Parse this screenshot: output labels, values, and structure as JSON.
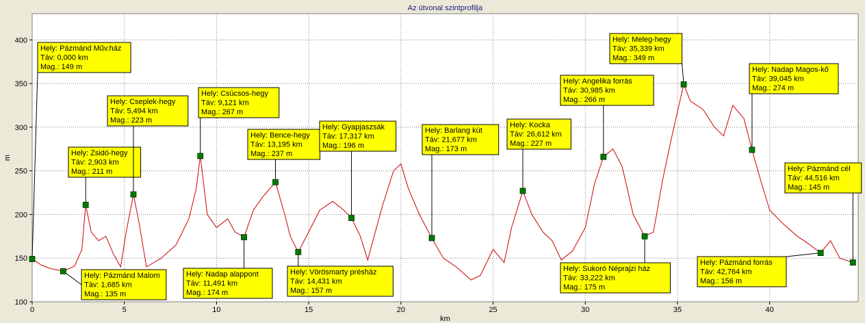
{
  "chart_data": {
    "type": "line",
    "title": "Az útvonal szintprofilja",
    "xlabel": "km",
    "ylabel": "m",
    "xlim": [
      0,
      44.8
    ],
    "ylim": [
      100,
      430
    ],
    "xticks": [
      "0",
      "5",
      "10",
      "15",
      "20",
      "25",
      "30",
      "35",
      "40"
    ],
    "yticks": [
      "100",
      "150",
      "200",
      "250",
      "300",
      "350",
      "400"
    ],
    "grid": true,
    "colors": {
      "line": "#cc0000",
      "marker": "#007a00",
      "label_bg": "#ffff00",
      "plot_bg": "#ffffff",
      "frame_bg": "#ece9d8",
      "title": "#1a1a80"
    },
    "series": [
      {
        "x": [
          0,
          0.5,
          1.0,
          1.685,
          2.3,
          2.7,
          2.903,
          3.2,
          3.6,
          4.0,
          4.4,
          4.8,
          5.1,
          5.494,
          5.8,
          6.2,
          7.0,
          7.8,
          8.5,
          8.9,
          9.121,
          9.5,
          10.0,
          10.6,
          11.0,
          11.491,
          12.0,
          12.5,
          13.195,
          13.7,
          14.0,
          14.431,
          15.0,
          15.6,
          16.3,
          16.9,
          17.317,
          17.8,
          18.2,
          19.0,
          19.6,
          20.0,
          20.4,
          21.0,
          21.677,
          22.3,
          23.0,
          23.8,
          24.3,
          25.0,
          25.6,
          26.0,
          26.612,
          27.1,
          27.7,
          28.2,
          28.7,
          29.3,
          30.0,
          30.5,
          30.985,
          31.5,
          32.0,
          32.6,
          33.222,
          33.7,
          34.2,
          34.7,
          35.339,
          35.7,
          36.4,
          37.0,
          37.5,
          38.0,
          38.6,
          39.045,
          39.5,
          40.0,
          40.7,
          41.5,
          42.0,
          42.764,
          43.3,
          43.8,
          44.516
        ],
        "y": [
          149,
          142,
          138,
          135,
          141,
          160,
          211,
          180,
          170,
          175,
          155,
          140,
          180,
          223,
          190,
          140,
          150,
          165,
          195,
          230,
          267,
          200,
          185,
          195,
          180,
          174,
          205,
          220,
          237,
          200,
          175,
          157,
          180,
          205,
          215,
          205,
          196,
          175,
          148,
          210,
          250,
          258,
          230,
          200,
          173,
          150,
          140,
          125,
          130,
          160,
          145,
          185,
          227,
          200,
          180,
          170,
          148,
          158,
          185,
          235,
          266,
          275,
          255,
          200,
          175,
          180,
          240,
          290,
          349,
          330,
          320,
          300,
          290,
          325,
          310,
          274,
          240,
          205,
          190,
          175,
          168,
          156,
          170,
          150,
          145
        ]
      }
    ],
    "annotations": [
      {
        "x": 0.0,
        "y": 149,
        "lines": [
          "Hely: Pázmánd Műv.ház",
          "Táv: 0,000 km",
          "Mag.: 149 m"
        ]
      },
      {
        "x": 1.685,
        "y": 135,
        "lines": [
          "Hely: Pázmánd Malom",
          "Táv: 1,685 km",
          "Mag.: 135 m"
        ]
      },
      {
        "x": 2.903,
        "y": 211,
        "lines": [
          "Hely: Zsidó-hegy",
          "Táv: 2,903 km",
          "Mag.: 211 m"
        ]
      },
      {
        "x": 5.494,
        "y": 223,
        "lines": [
          "Hely: Cseplek-hegy",
          "Táv: 5,494 km",
          "Mag.: 223 m"
        ]
      },
      {
        "x": 9.121,
        "y": 267,
        "lines": [
          "Hely: Csúcsos-hegy",
          "Táv: 9,121 km",
          "Mag.: 267 m"
        ]
      },
      {
        "x": 11.491,
        "y": 174,
        "lines": [
          "Hely: Nadap alappont",
          "Táv: 11,491 km",
          "Mag.: 174 m"
        ]
      },
      {
        "x": 13.195,
        "y": 237,
        "lines": [
          "Hely: Bence-hegy",
          "Táv: 13,195 km",
          "Mag.: 237 m"
        ]
      },
      {
        "x": 14.431,
        "y": 157,
        "lines": [
          "Hely: Vörösmarty présház",
          "Táv: 14,431 km",
          "Mag.: 157 m"
        ]
      },
      {
        "x": 17.317,
        "y": 196,
        "lines": [
          "Hely: Gyapjaszsák",
          "Táv: 17,317 km",
          "Mag.: 196 m"
        ]
      },
      {
        "x": 21.677,
        "y": 173,
        "lines": [
          "Hely: Barlang kút",
          "Táv: 21,677 km",
          "Mag.: 173 m"
        ]
      },
      {
        "x": 26.612,
        "y": 227,
        "lines": [
          "Hely: Kocka",
          "Táv: 26,612 km",
          "Mag.: 227 m"
        ]
      },
      {
        "x": 30.985,
        "y": 266,
        "lines": [
          "Hely: Angelika forrás",
          "Táv: 30,985 km",
          "Mag.: 266 m"
        ]
      },
      {
        "x": 33.222,
        "y": 175,
        "lines": [
          "Hely: Sukoró Néprajzi ház",
          "Táv: 33,222 km",
          "Mag.: 175 m"
        ]
      },
      {
        "x": 35.339,
        "y": 349,
        "lines": [
          "Hely: Meleg-hegy",
          "Táv: 35,339 km",
          "Mag.: 349 m"
        ]
      },
      {
        "x": 39.045,
        "y": 274,
        "lines": [
          "Hely: Nadap Magos-kő",
          "Táv: 39,045 km",
          "Mag.: 274 m"
        ]
      },
      {
        "x": 42.764,
        "y": 156,
        "lines": [
          "Hely: Pázmánd forrás",
          "Táv: 42,764 km",
          "Mag.: 156 m"
        ]
      },
      {
        "x": 44.516,
        "y": 145,
        "lines": [
          "Hely: Pázmánd cél",
          "Táv: 44,516 km",
          "Mag.: 145 m"
        ]
      }
    ]
  }
}
